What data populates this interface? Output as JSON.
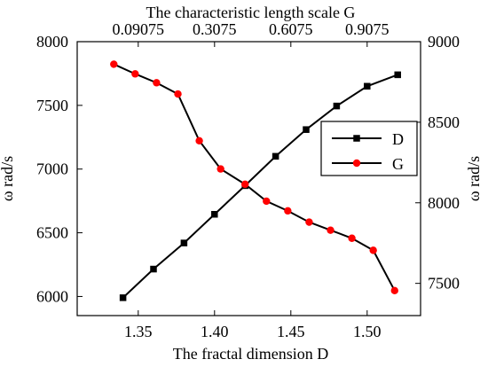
{
  "chart_data": {
    "type": "line",
    "title": "The characteristic length scale G",
    "xlabel": "The fractal dimension D",
    "ylabel_left": "ω rad/s",
    "ylabel_right": "ω rad/s",
    "x_bottom": {
      "range": [
        1.31,
        1.535
      ],
      "ticks": [
        1.35,
        1.4,
        1.45,
        1.5
      ],
      "tick_labels": [
        "1.35",
        "1.40",
        "1.45",
        "1.50"
      ]
    },
    "x_top": {
      "tick_labels": [
        "0.09075",
        "0.3075",
        "0.6075",
        "0.9075"
      ],
      "tick_positions_D": [
        1.35,
        1.4,
        1.45,
        1.5
      ]
    },
    "y_left": {
      "range": [
        5850,
        8000
      ],
      "ticks": [
        6000,
        6500,
        7000,
        7500,
        8000
      ],
      "tick_labels": [
        "6000",
        "6500",
        "7000",
        "7500",
        "8000"
      ]
    },
    "y_right": {
      "range": [
        7300,
        9000
      ],
      "ticks": [
        7500,
        8000,
        8500,
        9000
      ],
      "tick_labels": [
        "7500",
        "8000",
        "8500",
        "9000"
      ]
    },
    "legend": {
      "position": "right-middle",
      "entries": [
        "D",
        "G"
      ]
    },
    "series": [
      {
        "name": "D",
        "axis": "left",
        "color": "#000000",
        "marker": "square",
        "x": [
          1.34,
          1.36,
          1.38,
          1.4,
          1.42,
          1.44,
          1.46,
          1.48,
          1.5,
          1.52
        ],
        "y": [
          5990,
          6215,
          6420,
          6645,
          6870,
          7100,
          7310,
          7495,
          7650,
          7740
        ]
      },
      {
        "name": "G",
        "axis": "right",
        "color": "#ff0000",
        "marker": "circle",
        "x": [
          1.334,
          1.348,
          1.362,
          1.376,
          1.39,
          1.404,
          1.42,
          1.434,
          1.448,
          1.462,
          1.476,
          1.49,
          1.504,
          1.518
        ],
        "y": [
          8860,
          8800,
          8745,
          8675,
          8385,
          8210,
          8115,
          8010,
          7950,
          7880,
          7830,
          7780,
          7705,
          7455
        ]
      }
    ],
    "grid": false
  }
}
